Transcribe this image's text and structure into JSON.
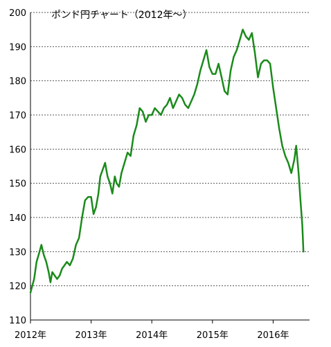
{
  "chart_data": {
    "type": "line",
    "title": "ポンド円チャート（2012年～）",
    "xlabel": "",
    "ylabel": "",
    "ylim": [
      110,
      200
    ],
    "xlim": [
      2012.0,
      2016.6
    ],
    "y_ticks": [
      110,
      120,
      130,
      140,
      150,
      160,
      170,
      180,
      190,
      200
    ],
    "x_ticks": [
      {
        "value": 2012,
        "label": "2012年"
      },
      {
        "value": 2013,
        "label": "2013年"
      },
      {
        "value": 2014,
        "label": "2014年"
      },
      {
        "value": 2015,
        "label": "2015年"
      },
      {
        "value": 2016,
        "label": "2016年"
      }
    ],
    "grid": "horizontal dashed",
    "line_color": "#1a8a1a",
    "series": [
      {
        "x": [
          2012.0,
          2012.03,
          2012.06,
          2012.1,
          2012.15,
          2012.18,
          2012.22,
          2012.26,
          2012.3,
          2012.33,
          2012.36,
          2012.4,
          2012.44,
          2012.48,
          2012.52,
          2012.56,
          2012.6,
          2012.65,
          2012.7,
          2012.75,
          2012.8,
          2012.85,
          2012.9,
          2012.95,
          2013.0,
          2013.04,
          2013.08,
          2013.12,
          2013.15,
          2013.19,
          2013.23,
          2013.27,
          2013.31,
          2013.35,
          2013.39,
          2013.42,
          2013.46,
          2013.5,
          2013.55,
          2013.6,
          2013.65,
          2013.7,
          2013.75,
          2013.8,
          2013.85,
          2013.9,
          2013.95,
          2014.0,
          2014.05,
          2014.1,
          2014.15,
          2014.2,
          2014.25,
          2014.3,
          2014.35,
          2014.4,
          2014.45,
          2014.5,
          2014.55,
          2014.6,
          2014.65,
          2014.7,
          2014.75,
          2014.8,
          2014.85,
          2014.9,
          2014.95,
          2015.0,
          2015.05,
          2015.1,
          2015.15,
          2015.2,
          2015.25,
          2015.3,
          2015.35,
          2015.4,
          2015.45,
          2015.5,
          2015.55,
          2015.6,
          2015.65,
          2015.7,
          2015.75,
          2015.8,
          2015.85,
          2015.9,
          2015.95,
          2016.0,
          2016.05,
          2016.1,
          2016.15,
          2016.2,
          2016.25,
          2016.3,
          2016.35,
          2016.38,
          2016.42,
          2016.45,
          2016.48,
          2016.5
        ],
        "values": [
          118,
          120,
          122,
          127,
          130,
          132,
          129,
          127,
          124,
          121,
          124,
          123,
          122,
          123,
          125,
          126,
          127,
          126,
          128,
          132,
          134,
          140,
          145,
          146,
          146,
          141,
          143,
          147,
          152,
          154,
          156,
          152,
          150,
          147,
          152,
          150,
          149,
          153,
          156,
          159,
          158,
          164,
          167,
          172,
          171,
          168,
          170,
          170,
          172,
          171,
          170,
          172,
          173,
          175,
          172,
          174,
          176,
          175,
          173,
          172,
          174,
          176,
          179,
          183,
          186,
          189,
          184,
          182,
          182,
          185,
          181,
          177,
          176,
          183,
          187,
          189,
          192,
          195,
          193,
          192,
          194,
          188,
          181,
          185,
          186,
          186,
          185,
          178,
          172,
          166,
          161,
          158,
          156,
          153,
          157,
          161,
          153,
          145,
          138,
          130
        ]
      }
    ]
  }
}
